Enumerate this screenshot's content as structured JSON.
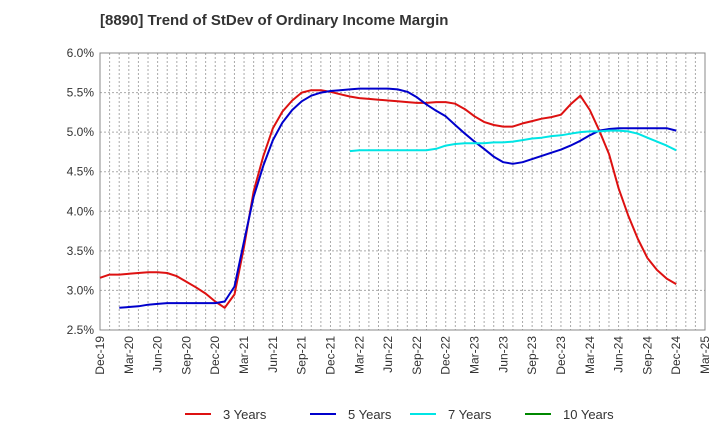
{
  "chart_data": {
    "type": "line",
    "title": "[8890]  Trend of StDev of Ordinary Income Margin",
    "xlabel": "",
    "ylabel": "",
    "x_tick_labels": [
      "Dec-19",
      "Mar-20",
      "Jun-20",
      "Sep-20",
      "Dec-20",
      "Mar-21",
      "Jun-21",
      "Sep-21",
      "Dec-21",
      "Mar-22",
      "Jun-22",
      "Sep-22",
      "Dec-22",
      "Mar-23",
      "Jun-23",
      "Sep-23",
      "Dec-23",
      "Mar-24",
      "Jun-24",
      "Sep-24",
      "Dec-24",
      "Mar-25"
    ],
    "y_tick_labels": [
      "6.0%",
      "5.5%",
      "5.0%",
      "4.5%",
      "4.0%",
      "3.5%",
      "3.0%",
      "2.5%"
    ],
    "ylim": [
      2.5,
      6.0
    ],
    "x_range_quarters": [
      0,
      21
    ],
    "grid": true,
    "legend_position": "bottom",
    "series": [
      {
        "name": "3 Years",
        "color": "#dd1111",
        "points": [
          [
            0,
            3.16
          ],
          [
            0.33,
            3.2
          ],
          [
            0.67,
            3.2
          ],
          [
            1,
            3.21
          ],
          [
            1.33,
            3.22
          ],
          [
            1.67,
            3.23
          ],
          [
            2,
            3.23
          ],
          [
            2.33,
            3.22
          ],
          [
            2.67,
            3.18
          ],
          [
            3,
            3.11
          ],
          [
            3.33,
            3.04
          ],
          [
            3.67,
            2.96
          ],
          [
            4,
            2.86
          ],
          [
            4.33,
            2.78
          ],
          [
            4.67,
            2.95
          ],
          [
            5,
            3.55
          ],
          [
            5.33,
            4.25
          ],
          [
            5.67,
            4.7
          ],
          [
            6,
            5.05
          ],
          [
            6.33,
            5.26
          ],
          [
            6.67,
            5.4
          ],
          [
            7,
            5.5
          ],
          [
            7.33,
            5.53
          ],
          [
            7.67,
            5.53
          ],
          [
            8,
            5.51
          ],
          [
            8.33,
            5.48
          ],
          [
            8.67,
            5.45
          ],
          [
            9,
            5.43
          ],
          [
            9.33,
            5.42
          ],
          [
            9.67,
            5.41
          ],
          [
            10,
            5.4
          ],
          [
            10.33,
            5.39
          ],
          [
            10.67,
            5.38
          ],
          [
            11,
            5.37
          ],
          [
            11.33,
            5.37
          ],
          [
            11.67,
            5.38
          ],
          [
            12,
            5.38
          ],
          [
            12.33,
            5.36
          ],
          [
            12.67,
            5.29
          ],
          [
            13,
            5.2
          ],
          [
            13.33,
            5.13
          ],
          [
            13.67,
            5.09
          ],
          [
            14,
            5.07
          ],
          [
            14.33,
            5.07
          ],
          [
            14.67,
            5.11
          ],
          [
            15,
            5.14
          ],
          [
            15.33,
            5.17
          ],
          [
            15.67,
            5.19
          ],
          [
            16,
            5.22
          ],
          [
            16.33,
            5.35
          ],
          [
            16.67,
            5.46
          ],
          [
            17,
            5.28
          ],
          [
            17.33,
            5.02
          ],
          [
            17.67,
            4.72
          ],
          [
            18,
            4.29
          ],
          [
            18.33,
            3.95
          ],
          [
            18.67,
            3.65
          ],
          [
            19,
            3.41
          ],
          [
            19.33,
            3.26
          ],
          [
            19.67,
            3.15
          ],
          [
            20,
            3.08
          ]
        ]
      },
      {
        "name": "5 Years",
        "color": "#0000cc",
        "points": [
          [
            0.67,
            2.78
          ],
          [
            1,
            2.79
          ],
          [
            1.33,
            2.8
          ],
          [
            1.67,
            2.82
          ],
          [
            2,
            2.83
          ],
          [
            2.33,
            2.84
          ],
          [
            2.67,
            2.84
          ],
          [
            3,
            2.84
          ],
          [
            3.33,
            2.84
          ],
          [
            3.67,
            2.84
          ],
          [
            4,
            2.84
          ],
          [
            4.33,
            2.86
          ],
          [
            4.67,
            3.05
          ],
          [
            5,
            3.62
          ],
          [
            5.33,
            4.18
          ],
          [
            5.67,
            4.58
          ],
          [
            6,
            4.9
          ],
          [
            6.33,
            5.12
          ],
          [
            6.67,
            5.28
          ],
          [
            7,
            5.39
          ],
          [
            7.33,
            5.46
          ],
          [
            7.67,
            5.5
          ],
          [
            8,
            5.52
          ],
          [
            8.33,
            5.53
          ],
          [
            8.67,
            5.54
          ],
          [
            9,
            5.55
          ],
          [
            9.33,
            5.55
          ],
          [
            9.67,
            5.55
          ],
          [
            10,
            5.55
          ],
          [
            10.33,
            5.54
          ],
          [
            10.67,
            5.51
          ],
          [
            11,
            5.44
          ],
          [
            11.33,
            5.35
          ],
          [
            11.67,
            5.27
          ],
          [
            12,
            5.2
          ],
          [
            12.33,
            5.09
          ],
          [
            12.67,
            4.98
          ],
          [
            13,
            4.88
          ],
          [
            13.33,
            4.79
          ],
          [
            13.67,
            4.69
          ],
          [
            14,
            4.62
          ],
          [
            14.33,
            4.6
          ],
          [
            14.67,
            4.62
          ],
          [
            15,
            4.66
          ],
          [
            15.33,
            4.7
          ],
          [
            15.67,
            4.74
          ],
          [
            16,
            4.78
          ],
          [
            16.33,
            4.83
          ],
          [
            16.67,
            4.89
          ],
          [
            17,
            4.96
          ],
          [
            17.33,
            5.02
          ],
          [
            17.67,
            5.04
          ],
          [
            18,
            5.05
          ],
          [
            18.33,
            5.05
          ],
          [
            18.67,
            5.05
          ],
          [
            19,
            5.05
          ],
          [
            19.33,
            5.05
          ],
          [
            19.67,
            5.05
          ],
          [
            20,
            5.02
          ]
        ]
      },
      {
        "name": "7 Years",
        "color": "#00e5e5",
        "points": [
          [
            8.67,
            4.76
          ],
          [
            9,
            4.77
          ],
          [
            9.33,
            4.77
          ],
          [
            9.67,
            4.77
          ],
          [
            10,
            4.77
          ],
          [
            10.33,
            4.77
          ],
          [
            10.67,
            4.77
          ],
          [
            11,
            4.77
          ],
          [
            11.33,
            4.77
          ],
          [
            11.67,
            4.79
          ],
          [
            12,
            4.83
          ],
          [
            12.33,
            4.85
          ],
          [
            12.67,
            4.86
          ],
          [
            13,
            4.86
          ],
          [
            13.33,
            4.86
          ],
          [
            13.67,
            4.87
          ],
          [
            14,
            4.87
          ],
          [
            14.33,
            4.88
          ],
          [
            14.67,
            4.9
          ],
          [
            15,
            4.92
          ],
          [
            15.33,
            4.93
          ],
          [
            15.67,
            4.95
          ],
          [
            16,
            4.96
          ],
          [
            16.33,
            4.98
          ],
          [
            16.67,
            5.0
          ],
          [
            17,
            5.01
          ],
          [
            17.33,
            5.01
          ],
          [
            17.67,
            5.02
          ],
          [
            18,
            5.02
          ],
          [
            18.33,
            5.01
          ],
          [
            18.67,
            4.98
          ],
          [
            19,
            4.93
          ],
          [
            19.33,
            4.88
          ],
          [
            19.67,
            4.83
          ],
          [
            20,
            4.77
          ]
        ]
      },
      {
        "name": "10 Years",
        "color": "#008800",
        "points": []
      }
    ]
  }
}
